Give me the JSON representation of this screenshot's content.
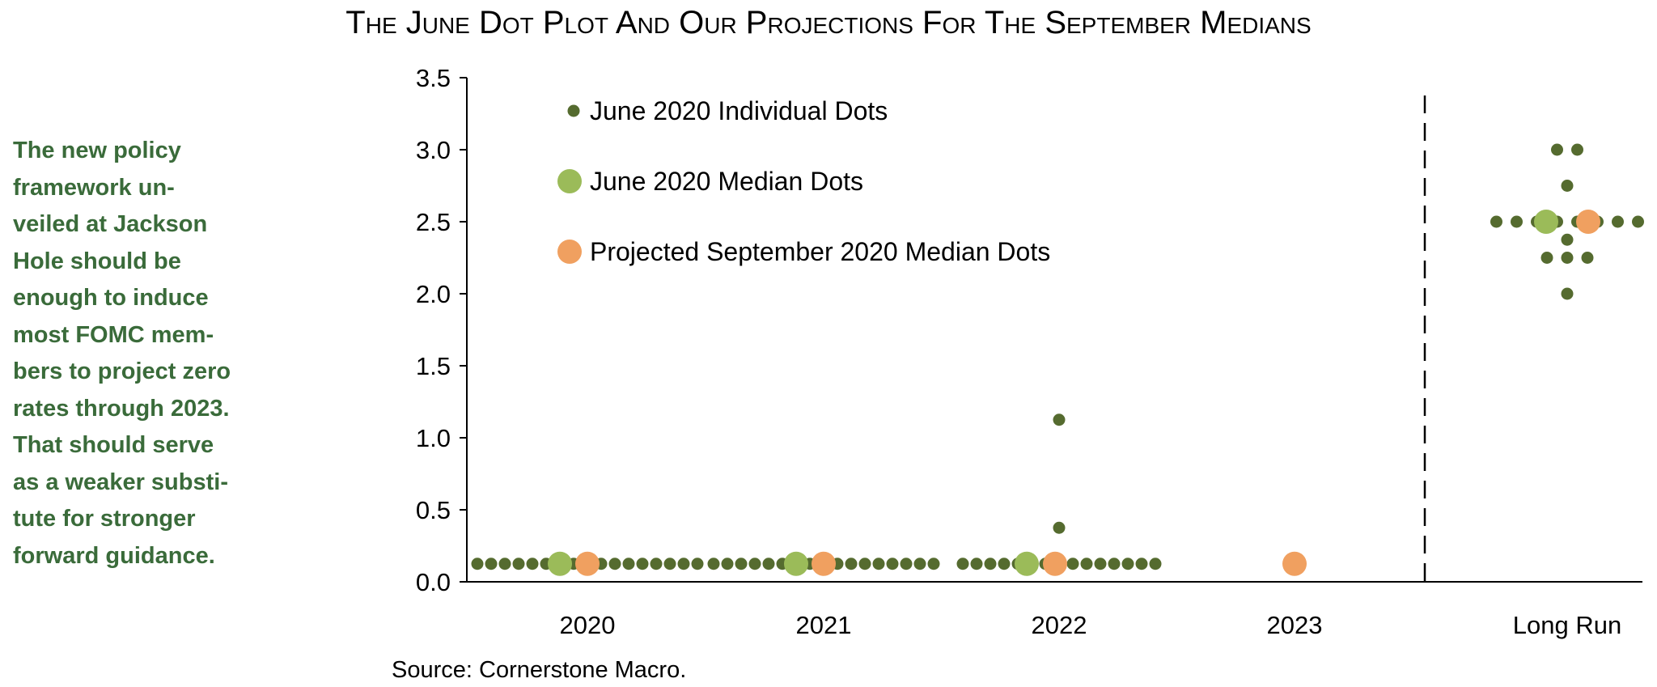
{
  "note_lines": [
    "The new policy",
    "framework un-",
    "veiled at Jackson",
    "Hole should be",
    "enough to induce",
    "most FOMC mem-",
    "bers to project zero",
    "rates through 2023.",
    "That should serve",
    "as a weaker substi-",
    "tute for stronger",
    "forward guidance."
  ],
  "source": "Source: Cornerstone Macro.",
  "colors": {
    "individual": "#556b2f",
    "median": "#9bbb59",
    "projected": "#f0a060",
    "note_text": "#3a6b3a"
  },
  "chart_data": {
    "type": "scatter",
    "title": "The June Dot Plot And Our Projections For The September Medians",
    "categories": [
      "2020",
      "2021",
      "2022",
      "2023",
      "Long Run"
    ],
    "ylim": [
      0,
      3.5
    ],
    "yticks": [
      "0.0",
      "0.5",
      "1.0",
      "1.5",
      "2.0",
      "2.5",
      "3.0",
      "3.5"
    ],
    "legend": [
      {
        "key": "individual",
        "label": "June 2020 Individual Dots"
      },
      {
        "key": "median",
        "label": "June 2020 Median Dots"
      },
      {
        "key": "projected",
        "label": "Projected September 2020 Median Dots"
      }
    ],
    "individual_dots": {
      "2020": [
        0.125,
        0.125,
        0.125,
        0.125,
        0.125,
        0.125,
        0.125,
        0.125,
        0.125,
        0.125,
        0.125,
        0.125,
        0.125,
        0.125,
        0.125,
        0.125,
        0.125
      ],
      "2021": [
        0.125,
        0.125,
        0.125,
        0.125,
        0.125,
        0.125,
        0.125,
        0.125,
        0.125,
        0.125,
        0.125,
        0.125,
        0.125,
        0.125,
        0.125,
        0.125,
        0.125
      ],
      "2022": [
        0.125,
        0.125,
        0.125,
        0.125,
        0.125,
        0.125,
        0.125,
        0.125,
        0.125,
        0.125,
        0.125,
        0.125,
        0.125,
        0.125,
        0.125,
        0.375,
        1.125
      ],
      "Long Run": [
        3.0,
        3.0,
        2.75,
        2.5,
        2.5,
        2.5,
        2.5,
        2.5,
        2.5,
        2.5,
        2.5,
        2.375,
        2.25,
        2.25,
        2.25,
        2.0
      ]
    },
    "median_dots": {
      "2020": 0.125,
      "2021": 0.125,
      "2022": 0.125,
      "Long Run": 2.5
    },
    "projected_median_dots": {
      "2020": 0.125,
      "2021": 0.125,
      "2022": 0.125,
      "2023": 0.125,
      "Long Run": 2.5
    },
    "divider_before": "Long Run"
  }
}
